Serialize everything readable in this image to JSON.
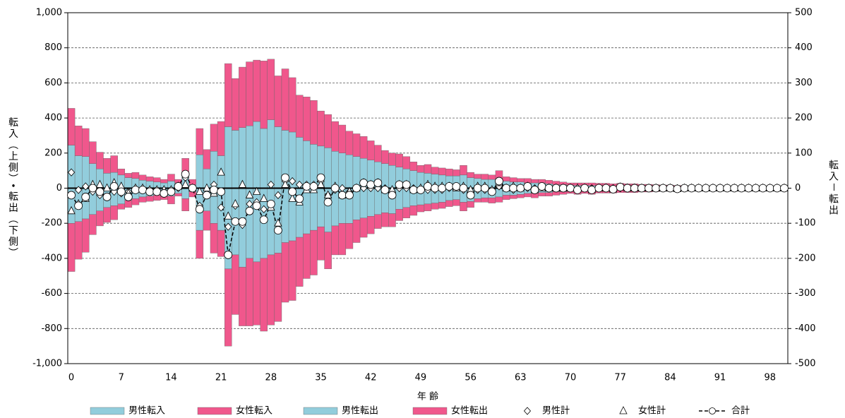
{
  "chart_data": {
    "type": "bar",
    "x_label": "年 齢",
    "y_label": "転入（上側）・転出（下側）",
    "y2_label": "転入－転出",
    "categories": [
      "0",
      null,
      null,
      null,
      null,
      null,
      null,
      "7",
      null,
      null,
      null,
      null,
      null,
      null,
      "14",
      null,
      null,
      null,
      null,
      null,
      null,
      "21",
      null,
      null,
      null,
      null,
      null,
      null,
      "28",
      null,
      null,
      null,
      null,
      null,
      null,
      "35",
      null,
      null,
      null,
      null,
      null,
      null,
      "42",
      null,
      null,
      null,
      null,
      null,
      null,
      "49",
      null,
      null,
      null,
      null,
      null,
      null,
      "56",
      null,
      null,
      null,
      null,
      null,
      null,
      "63",
      null,
      null,
      null,
      null,
      null,
      null,
      "70",
      null,
      null,
      null,
      null,
      null,
      null,
      "77",
      null,
      null,
      null,
      null,
      null,
      null,
      "84",
      null,
      null,
      null,
      null,
      null,
      null,
      "91",
      null,
      null,
      null,
      null,
      null,
      null,
      "98",
      null,
      null
    ],
    "ylim": [
      -1000,
      1000
    ],
    "yticks": [
      {
        "value": -1000,
        "label": "-1,000"
      },
      -800,
      -600,
      -400,
      -200,
      0,
      200,
      400,
      600,
      800,
      {
        "value": 1000,
        "label": "1,000"
      }
    ],
    "y2lim": [
      -500,
      500
    ],
    "y2ticks": [
      -500,
      -400,
      -300,
      -200,
      -100,
      0,
      100,
      200,
      300,
      400,
      500
    ],
    "grid": true,
    "series": [
      {
        "name": "男性転入",
        "color": "#92cddc",
        "values": [
          245,
          185,
          180,
          140,
          110,
          85,
          90,
          75,
          60,
          55,
          45,
          40,
          35,
          30,
          40,
          30,
          90,
          20,
          190,
          110,
          210,
          185,
          350,
          330,
          345,
          355,
          380,
          340,
          390,
          350,
          330,
          320,
          290,
          270,
          250,
          240,
          230,
          210,
          200,
          190,
          180,
          170,
          160,
          150,
          140,
          130,
          120,
          110,
          100,
          90,
          85,
          80,
          75,
          70,
          70,
          75,
          60,
          55,
          50,
          50,
          55,
          40,
          35,
          35,
          30,
          30,
          30,
          25,
          20,
          20,
          15,
          15,
          15,
          15,
          12,
          12,
          12,
          10,
          10,
          10,
          10,
          8,
          8,
          6,
          6,
          6,
          5,
          4,
          4,
          3,
          3,
          3,
          2,
          2,
          2,
          1,
          1,
          1,
          1,
          0,
          0
        ]
      },
      {
        "name": "女性転入",
        "color": "#f0578c",
        "values": [
          210,
          170,
          160,
          125,
          95,
          85,
          95,
          35,
          25,
          35,
          30,
          25,
          25,
          20,
          40,
          20,
          80,
          30,
          150,
          110,
          155,
          195,
          360,
          295,
          345,
          365,
          350,
          385,
          345,
          290,
          350,
          310,
          240,
          250,
          250,
          200,
          190,
          170,
          160,
          135,
          130,
          125,
          110,
          95,
          75,
          70,
          75,
          70,
          50,
          40,
          50,
          40,
          40,
          40,
          35,
          55,
          30,
          25,
          30,
          25,
          45,
          25,
          25,
          20,
          25,
          20,
          20,
          20,
          20,
          15,
          15,
          15,
          15,
          15,
          16,
          16,
          13,
          18,
          15,
          15,
          12,
          14,
          12,
          12,
          12,
          10,
          10,
          8,
          8,
          7,
          7,
          6,
          5,
          5,
          4,
          3,
          3,
          2,
          2,
          1,
          1
        ]
      },
      {
        "name": "男性転出",
        "color": "#92cddc",
        "values": [
          -200,
          -190,
          -175,
          -150,
          -130,
          -110,
          -100,
          -90,
          -70,
          -60,
          -50,
          -45,
          -40,
          -40,
          -45,
          -30,
          -60,
          -20,
          -240,
          -130,
          -200,
          -240,
          -460,
          -380,
          -450,
          -400,
          -420,
          -400,
          -380,
          -370,
          -310,
          -300,
          -280,
          -260,
          -240,
          -220,
          -250,
          -215,
          -200,
          -200,
          -180,
          -170,
          -160,
          -150,
          -140,
          -145,
          -120,
          -110,
          -100,
          -95,
          -90,
          -85,
          -80,
          -70,
          -65,
          -80,
          -75,
          -60,
          -55,
          -55,
          -50,
          -40,
          -40,
          -35,
          -30,
          -30,
          -25,
          -25,
          -20,
          -20,
          -15,
          -20,
          -15,
          -15,
          -12,
          -12,
          -12,
          -10,
          -10,
          -10,
          -10,
          -8,
          -8,
          -6,
          -6,
          -6,
          -5,
          -4,
          -4,
          -3,
          -3,
          -3,
          -2,
          -2,
          -2,
          -1,
          -1,
          -1,
          -1,
          0,
          0
        ]
      },
      {
        "name": "女性転出",
        "color": "#f0578c",
        "values": [
          -275,
          -215,
          -190,
          -115,
          -85,
          -85,
          -80,
          -30,
          -40,
          -35,
          -30,
          -30,
          -30,
          -25,
          -45,
          -15,
          -70,
          -30,
          -160,
          -110,
          -170,
          -150,
          -440,
          -340,
          -335,
          -385,
          -360,
          -415,
          -400,
          -390,
          -340,
          -340,
          -280,
          -255,
          -255,
          -190,
          -210,
          -165,
          -180,
          -145,
          -130,
          -110,
          -100,
          -80,
          -80,
          -75,
          -65,
          -60,
          -55,
          -40,
          -40,
          -35,
          -35,
          -35,
          -35,
          -50,
          -35,
          -20,
          -25,
          -30,
          -30,
          -25,
          -20,
          -20,
          -20,
          -25,
          -20,
          -20,
          -20,
          -15,
          -15,
          -15,
          -15,
          -20,
          -16,
          -16,
          -16,
          -15,
          -15,
          -15,
          -12,
          -14,
          -12,
          -12,
          -12,
          -12,
          -10,
          -8,
          -8,
          -7,
          -7,
          -6,
          -5,
          -5,
          -4,
          -3,
          -3,
          -2,
          -2,
          -1,
          -1
        ]
      },
      {
        "name": "男性計",
        "axis": "y2",
        "marker": "diamond",
        "color": "#000000",
        "values": [
          45,
          -5,
          5,
          -10,
          -20,
          -25,
          -10,
          -15,
          -10,
          -5,
          -5,
          -5,
          -5,
          -10,
          -5,
          0,
          30,
          0,
          -50,
          -20,
          10,
          -55,
          -110,
          -50,
          -105,
          -45,
          -40,
          -60,
          10,
          -20,
          20,
          20,
          10,
          10,
          10,
          20,
          -20,
          -5,
          0,
          -10,
          0,
          0,
          0,
          0,
          0,
          -15,
          0,
          0,
          0,
          -5,
          -5,
          -5,
          -5,
          0,
          5,
          -5,
          -15,
          -5,
          -5,
          -5,
          5,
          0,
          -5,
          0,
          0,
          0,
          5,
          0,
          0,
          0,
          0,
          -5,
          0,
          0,
          0,
          0,
          0,
          0,
          0,
          0,
          0,
          0,
          0,
          0,
          0,
          0,
          0,
          0,
          0,
          0,
          0,
          0,
          0,
          0,
          0,
          0,
          0,
          0,
          0,
          0,
          0
        ]
      },
      {
        "name": "女性計",
        "axis": "y2",
        "marker": "triangle",
        "color": "#000000",
        "values": [
          -65,
          -45,
          -30,
          10,
          10,
          0,
          15,
          5,
          -15,
          0,
          0,
          -5,
          -5,
          -5,
          -5,
          5,
          10,
          0,
          -10,
          0,
          -15,
          45,
          -80,
          -45,
          10,
          -20,
          -10,
          -30,
          -55,
          -100,
          10,
          -30,
          -40,
          -5,
          -5,
          10,
          -20,
          5,
          -20,
          -10,
          0,
          15,
          10,
          15,
          -5,
          -5,
          10,
          10,
          -5,
          0,
          10,
          5,
          5,
          5,
          0,
          5,
          -5,
          5,
          5,
          -5,
          15,
          0,
          5,
          0,
          5,
          -5,
          0,
          0,
          0,
          0,
          0,
          0,
          0,
          -5,
          0,
          0,
          -3,
          3,
          0,
          0,
          0,
          0,
          0,
          0,
          0,
          -2,
          0,
          0,
          0,
          0,
          0,
          0,
          0,
          0,
          0,
          0,
          0,
          0,
          0,
          0,
          0
        ]
      },
      {
        "name": "合計",
        "axis": "y2",
        "marker": "circle",
        "line": "dashed",
        "color": "#000000",
        "values": [
          -20,
          -50,
          -25,
          0,
          -10,
          -25,
          5,
          -10,
          -25,
          -5,
          -5,
          -10,
          -10,
          -15,
          -10,
          5,
          40,
          0,
          -60,
          -20,
          -5,
          -10,
          -190,
          -95,
          -95,
          -65,
          -50,
          -90,
          -45,
          -120,
          30,
          -10,
          -30,
          5,
          5,
          30,
          -40,
          0,
          -20,
          -20,
          0,
          15,
          10,
          15,
          -5,
          -20,
          10,
          10,
          -5,
          -5,
          5,
          0,
          0,
          5,
          5,
          0,
          -20,
          0,
          0,
          -10,
          20,
          0,
          0,
          0,
          5,
          -5,
          5,
          0,
          0,
          0,
          0,
          -5,
          0,
          -5,
          0,
          0,
          -3,
          3,
          0,
          0,
          0,
          0,
          0,
          0,
          0,
          -2,
          0,
          0,
          0,
          0,
          0,
          0,
          0,
          0,
          0,
          0,
          0,
          0,
          0,
          0,
          0
        ]
      }
    ]
  }
}
